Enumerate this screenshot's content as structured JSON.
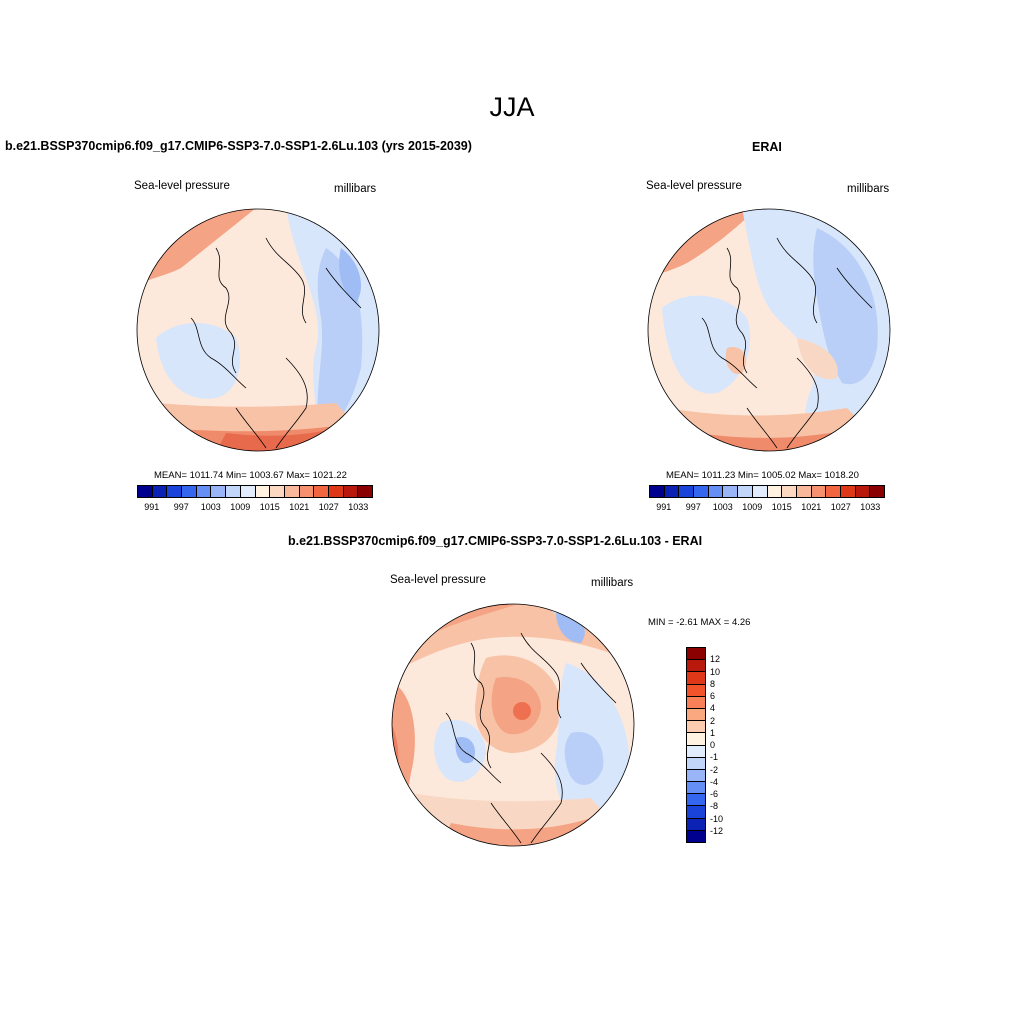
{
  "main_title": "JJA",
  "panels": {
    "model": {
      "title": "b.e21.BSSP370cmip6.f09_g17.CMIP6-SSP3-7.0-SSP1-2.6Lu.103 (yrs 2015-2039)",
      "variable": "Sea-level pressure",
      "units": "millibars",
      "stats": "MEAN= 1011.74  Min= 1003.67  Max= 1021.22"
    },
    "obs": {
      "title": "ERAI",
      "variable": "Sea-level pressure",
      "units": "millibars",
      "stats": "MEAN= 1011.23  Min= 1005.02  Max= 1018.20"
    },
    "diff": {
      "title": "b.e21.BSSP370cmip6.f09_g17.CMIP6-SSP3-7.0-SSP1-2.6Lu.103 - ERAI",
      "variable": "Sea-level pressure",
      "units": "millibars",
      "stats": "MIN =  -2.61 MAX =   4.26"
    }
  },
  "abs_colorbar": {
    "colors": [
      "#00008f",
      "#0b22b5",
      "#1a44d9",
      "#3466f0",
      "#668ff5",
      "#99b5f7",
      "#c2d6fa",
      "#e1ecfc",
      "#fff2e0",
      "#fcd8c0",
      "#f9b89a",
      "#f7906e",
      "#f2663f",
      "#df3818",
      "#b8190c",
      "#8b0000"
    ],
    "ticks": [
      "991",
      "997",
      "1003",
      "1009",
      "1015",
      "1021",
      "1027",
      "1033"
    ]
  },
  "diff_colorbar": {
    "colors": [
      "#8b0000",
      "#b8190c",
      "#df3818",
      "#f2532a",
      "#f78058",
      "#f9a880",
      "#fbccb0",
      "#fff2e0",
      "#e1ecfc",
      "#c2d6fa",
      "#99b5f7",
      "#668ff5",
      "#3466f0",
      "#1a44d9",
      "#0b22b5",
      "#00008f"
    ],
    "ticks": [
      "12",
      "10",
      "8",
      "6",
      "4",
      "2",
      "1",
      "0",
      "-1",
      "-2",
      "-4",
      "-6",
      "-8",
      "-10",
      "-12"
    ]
  }
}
